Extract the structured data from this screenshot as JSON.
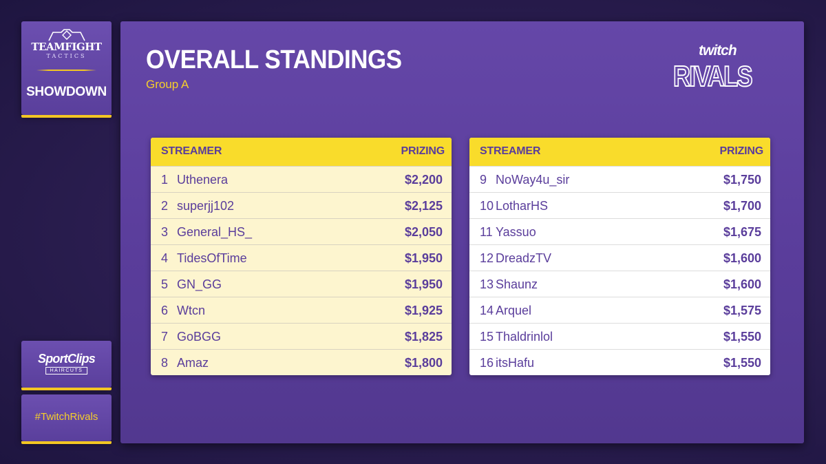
{
  "branding": {
    "game_title": "TEAMFIGHT",
    "game_subtitle": "TACTICS",
    "event_name": "SHOWDOWN",
    "sponsor_name": "SportClips",
    "sponsor_sub": "HAIRCUTS",
    "hashtag": "#TwitchRivals",
    "twitch_word": "twitch",
    "rivals_word": "RIVALS"
  },
  "header": {
    "title": "OVERALL STANDINGS",
    "subtitle": "Group A"
  },
  "colors": {
    "panel_purple": "#6547a8",
    "accent_yellow": "#f9dc2b",
    "text_purple": "#5a3d9b"
  },
  "tables": [
    {
      "col_streamer": "STREAMER",
      "col_prizing": "PRIZING",
      "rows": [
        {
          "rank": "1",
          "name": "Uthenera",
          "prize": "$2,200"
        },
        {
          "rank": "2",
          "name": "superjj102",
          "prize": "$2,125"
        },
        {
          "rank": "3",
          "name": "General_HS_",
          "prize": "$2,050"
        },
        {
          "rank": "4",
          "name": "TidesOfTime",
          "prize": "$1,950"
        },
        {
          "rank": "5",
          "name": "GN_GG",
          "prize": "$1,950"
        },
        {
          "rank": "6",
          "name": "Wtcn",
          "prize": "$1,925"
        },
        {
          "rank": "7",
          "name": "GoBGG",
          "prize": "$1,825"
        },
        {
          "rank": "8",
          "name": "Amaz",
          "prize": "$1,800"
        }
      ]
    },
    {
      "col_streamer": "STREAMER",
      "col_prizing": "PRIZING",
      "rows": [
        {
          "rank": "9",
          "name": "NoWay4u_sir",
          "prize": "$1,750"
        },
        {
          "rank": "10",
          "name": "LotharHS",
          "prize": "$1,700"
        },
        {
          "rank": "11",
          "name": "Yassuo",
          "prize": "$1,675"
        },
        {
          "rank": "12",
          "name": "DreadzTV",
          "prize": "$1,600"
        },
        {
          "rank": "13",
          "name": "Shaunz",
          "prize": "$1,600"
        },
        {
          "rank": "14",
          "name": "Arquel",
          "prize": "$1,575"
        },
        {
          "rank": "15",
          "name": "Thaldrinlol",
          "prize": "$1,550"
        },
        {
          "rank": "16",
          "name": "itsHafu",
          "prize": "$1,550"
        }
      ]
    }
  ]
}
